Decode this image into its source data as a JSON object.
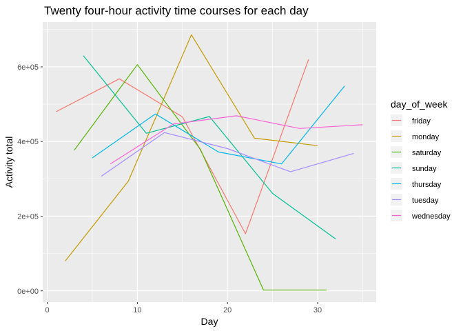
{
  "chart_data": {
    "type": "line",
    "title": "Twenty four-hour activity time courses for each day",
    "xlabel": "Day",
    "ylabel": "Activity total",
    "xlim": [
      -0.5,
      36.5
    ],
    "ylim": [
      -30000,
      720000
    ],
    "x_ticks": [
      0,
      10,
      20,
      30
    ],
    "x_tick_labels": [
      "0",
      "10",
      "20",
      "30"
    ],
    "x_minor": [
      5,
      15,
      25,
      35
    ],
    "y_ticks": [
      0,
      200000,
      400000,
      600000
    ],
    "y_tick_labels": [
      "0e+00",
      "2e+05",
      "4e+05",
      "6e+05"
    ],
    "y_minor": [
      100000,
      300000,
      500000,
      700000
    ],
    "grid": true,
    "legend_title": "day_of_week",
    "legend_position": "right",
    "series": [
      {
        "name": "friday",
        "color": "#F8766D",
        "points": [
          [
            1,
            480000
          ],
          [
            8,
            568000
          ],
          [
            15,
            466000
          ],
          [
            22,
            153000
          ],
          [
            29,
            620000
          ]
        ]
      },
      {
        "name": "monday",
        "color": "#C49A00",
        "points": [
          [
            2,
            80000
          ],
          [
            9,
            294000
          ],
          [
            16,
            686000
          ],
          [
            23,
            409000
          ],
          [
            30,
            389000
          ]
        ]
      },
      {
        "name": "saturday",
        "color": "#53B400",
        "points": [
          [
            3,
            377000
          ],
          [
            10,
            606000
          ],
          [
            17,
            379000
          ],
          [
            24,
            2000
          ],
          [
            31,
            2000
          ]
        ]
      },
      {
        "name": "sunday",
        "color": "#00C094",
        "points": [
          [
            4,
            630000
          ],
          [
            11,
            422000
          ],
          [
            18,
            467000
          ],
          [
            25,
            261000
          ],
          [
            32,
            139000
          ]
        ]
      },
      {
        "name": "thursday",
        "color": "#00B6EB",
        "points": [
          [
            5,
            356000
          ],
          [
            12,
            474000
          ],
          [
            19,
            372000
          ],
          [
            26,
            340000
          ],
          [
            33,
            549000
          ]
        ]
      },
      {
        "name": "tuesday",
        "color": "#A58AFF",
        "points": [
          [
            6,
            307000
          ],
          [
            13,
            424000
          ],
          [
            20,
            381000
          ],
          [
            27,
            319000
          ],
          [
            34,
            368000
          ]
        ]
      },
      {
        "name": "wednesday",
        "color": "#FB61D7",
        "points": [
          [
            7,
            340000
          ],
          [
            14,
            447000
          ],
          [
            21,
            469000
          ],
          [
            28,
            435000
          ],
          [
            35,
            445000
          ]
        ]
      }
    ]
  }
}
